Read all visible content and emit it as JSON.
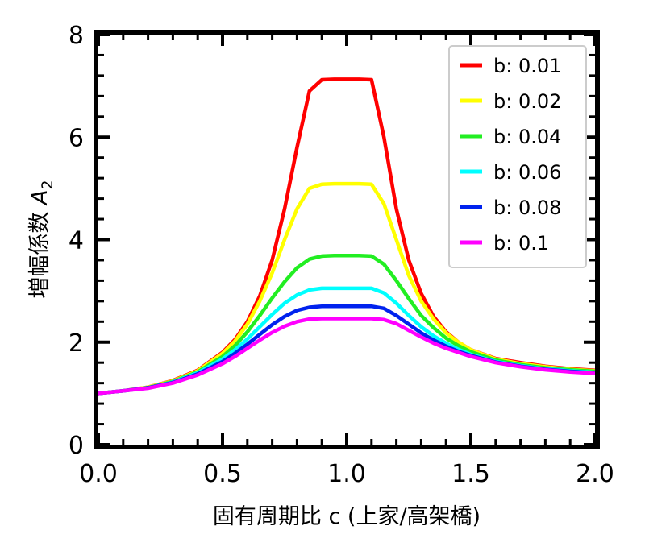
{
  "chart_data": {
    "type": "line",
    "xlabel": "固有周期比 c (上家/高架橋)",
    "ylabel_prefix": "増幅係数 ",
    "ylabel_var": "A",
    "ylabel_sub": "2",
    "xlim": [
      0.0,
      2.0
    ],
    "ylim": [
      0,
      8
    ],
    "x_ticks": [
      "0.0",
      "0.5",
      "1.0",
      "1.5",
      "2.0"
    ],
    "y_ticks": [
      "0",
      "2",
      "4",
      "6",
      "8"
    ],
    "grid": false,
    "legend_position": "top-right",
    "x": [
      0.0,
      0.1,
      0.2,
      0.3,
      0.4,
      0.5,
      0.55,
      0.6,
      0.65,
      0.7,
      0.75,
      0.8,
      0.85,
      0.9,
      0.95,
      1.0,
      1.05,
      1.1,
      1.15,
      1.2,
      1.25,
      1.3,
      1.35,
      1.4,
      1.45,
      1.5,
      1.6,
      1.7,
      1.8,
      1.9,
      2.0
    ],
    "series": [
      {
        "name": "b: 0.01",
        "color": "#ff0000",
        "values": [
          1.0,
          1.05,
          1.12,
          1.25,
          1.45,
          1.8,
          2.05,
          2.4,
          2.9,
          3.6,
          4.6,
          5.8,
          6.9,
          7.12,
          7.13,
          7.13,
          7.13,
          7.12,
          6.0,
          4.6,
          3.6,
          2.95,
          2.5,
          2.2,
          2.0,
          1.85,
          1.68,
          1.6,
          1.53,
          1.48,
          1.45
        ]
      },
      {
        "name": "b: 0.02",
        "color": "#ffff00",
        "values": [
          1.0,
          1.05,
          1.12,
          1.24,
          1.44,
          1.78,
          2.02,
          2.35,
          2.8,
          3.35,
          4.0,
          4.6,
          5.0,
          5.08,
          5.09,
          5.09,
          5.09,
          5.08,
          4.7,
          4.0,
          3.3,
          2.8,
          2.45,
          2.18,
          2.0,
          1.85,
          1.67,
          1.58,
          1.52,
          1.47,
          1.44
        ]
      },
      {
        "name": "b: 0.04",
        "color": "#22ee22",
        "values": [
          1.0,
          1.05,
          1.11,
          1.23,
          1.42,
          1.72,
          1.93,
          2.2,
          2.52,
          2.86,
          3.18,
          3.45,
          3.62,
          3.68,
          3.69,
          3.69,
          3.69,
          3.68,
          3.52,
          3.2,
          2.85,
          2.52,
          2.28,
          2.08,
          1.93,
          1.81,
          1.65,
          1.56,
          1.5,
          1.46,
          1.43
        ]
      },
      {
        "name": "b: 0.06",
        "color": "#00ffff",
        "values": [
          1.0,
          1.05,
          1.11,
          1.22,
          1.4,
          1.67,
          1.85,
          2.06,
          2.3,
          2.54,
          2.76,
          2.92,
          3.02,
          3.05,
          3.05,
          3.05,
          3.05,
          3.05,
          2.96,
          2.76,
          2.52,
          2.3,
          2.12,
          1.98,
          1.86,
          1.76,
          1.62,
          1.54,
          1.48,
          1.44,
          1.41
        ]
      },
      {
        "name": "b: 0.08",
        "color": "#0022ee",
        "values": [
          1.0,
          1.05,
          1.11,
          1.21,
          1.38,
          1.62,
          1.78,
          1.96,
          2.15,
          2.34,
          2.5,
          2.62,
          2.68,
          2.7,
          2.7,
          2.7,
          2.7,
          2.7,
          2.66,
          2.52,
          2.35,
          2.18,
          2.04,
          1.92,
          1.82,
          1.74,
          1.61,
          1.53,
          1.47,
          1.43,
          1.4
        ]
      },
      {
        "name": "b: 0.1",
        "color": "#ff00ff",
        "values": [
          1.0,
          1.05,
          1.1,
          1.2,
          1.36,
          1.58,
          1.72,
          1.88,
          2.04,
          2.19,
          2.31,
          2.4,
          2.45,
          2.46,
          2.46,
          2.46,
          2.46,
          2.46,
          2.44,
          2.36,
          2.23,
          2.1,
          1.98,
          1.88,
          1.8,
          1.72,
          1.6,
          1.52,
          1.46,
          1.42,
          1.39
        ]
      }
    ]
  }
}
